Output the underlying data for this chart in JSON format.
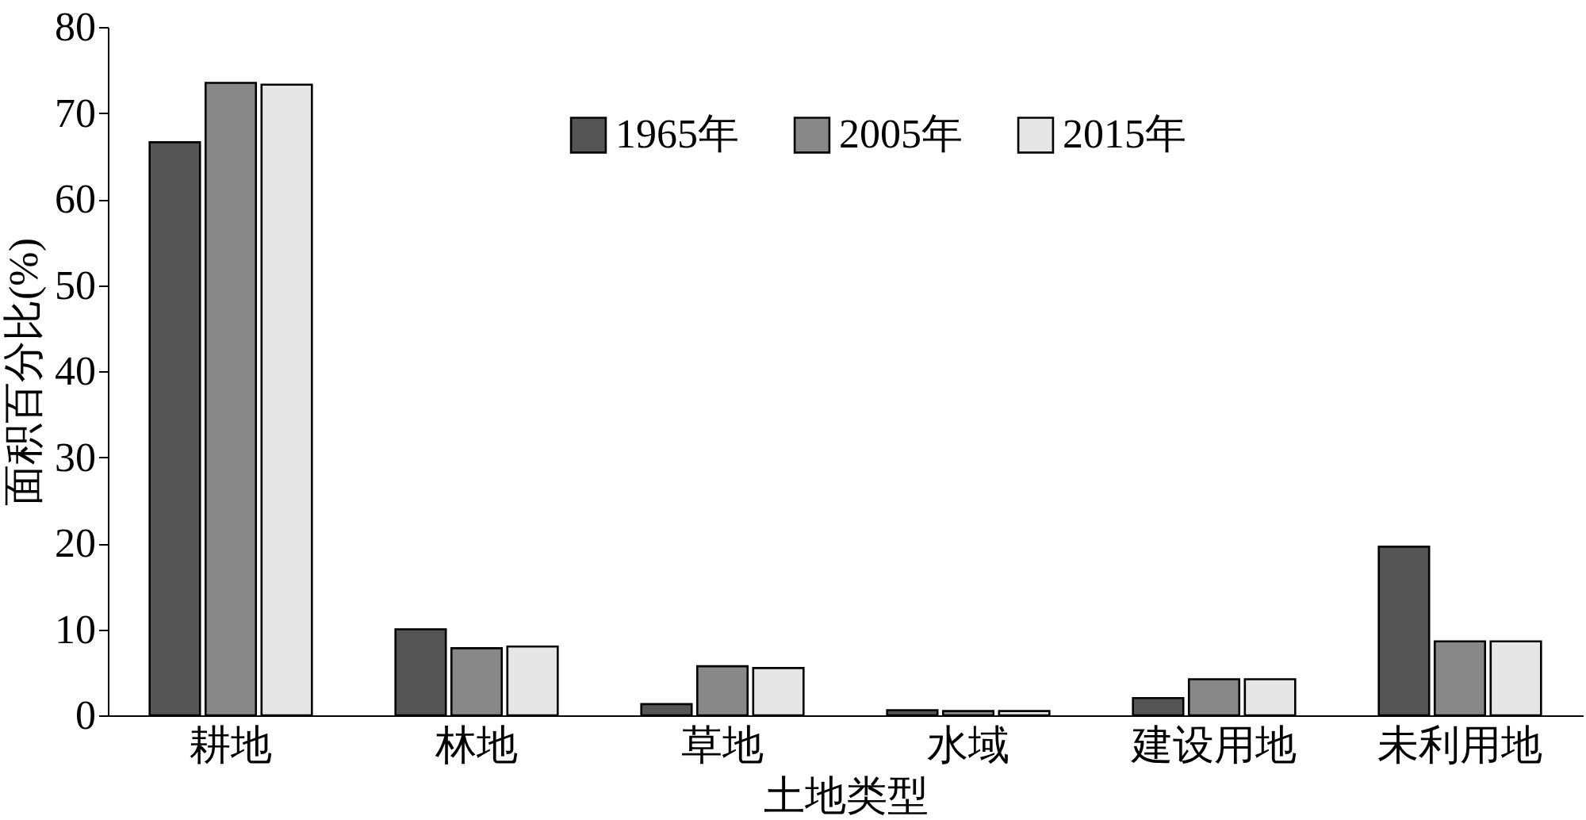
{
  "chart_data": {
    "type": "bar",
    "xlabel": "土地类型",
    "ylabel": "面积百分比(%)",
    "categories": [
      "耕地",
      "林地",
      "草地",
      "水域",
      "建设用地",
      "未利用地"
    ],
    "series": [
      {
        "name": "1965年",
        "color": "#555555",
        "values": [
          66.6,
          10.0,
          1.3,
          0.6,
          2.0,
          19.6
        ]
      },
      {
        "name": "2005年",
        "color": "#888888",
        "values": [
          73.5,
          7.8,
          5.7,
          0.5,
          4.2,
          8.6
        ]
      },
      {
        "name": "2015年",
        "color": "#e6e6e6",
        "values": [
          73.3,
          8.0,
          5.5,
          0.5,
          4.2,
          8.6
        ]
      }
    ],
    "ylim": [
      0,
      80
    ],
    "yticks": [
      0,
      10,
      20,
      30,
      40,
      50,
      60,
      70,
      80
    ],
    "legend": "top"
  }
}
